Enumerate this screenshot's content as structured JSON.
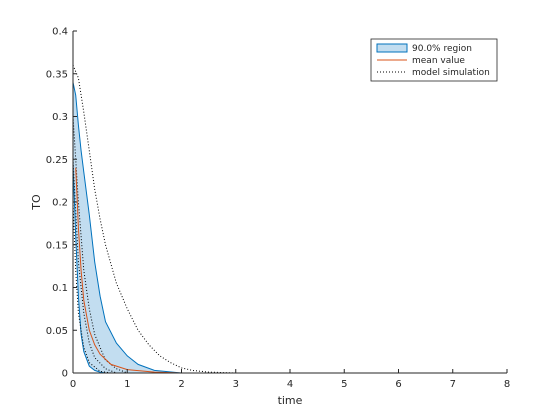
{
  "chart_data": {
    "type": "area",
    "xlabel": "time",
    "ylabel": "TO",
    "xlim": [
      0,
      8
    ],
    "ylim": [
      0,
      0.4
    ],
    "xticks": [
      "0",
      "1",
      "2",
      "3",
      "4",
      "5",
      "6",
      "7",
      "8"
    ],
    "yticks": [
      "0",
      "0.05",
      "0.1",
      "0.15",
      "0.2",
      "0.25",
      "0.3",
      "0.35",
      "0.4"
    ],
    "grid": false,
    "legend_position": "top-right",
    "legend": [
      "90.0% region",
      "mean value",
      "model simulation"
    ],
    "colors": {
      "band_fill": "#c2ddf0",
      "band_edge": "#0072bd",
      "mean": "#d95319",
      "simulation": "#000000",
      "axis": "#262626"
    },
    "band": {
      "x": [
        0,
        0.05,
        0.1,
        0.15,
        0.2,
        0.3,
        0.4,
        0.5,
        0.6,
        0.8,
        1.0,
        1.2,
        1.5,
        2.0
      ],
      "upper": [
        0.34,
        0.325,
        0.29,
        0.26,
        0.235,
        0.185,
        0.13,
        0.09,
        0.06,
        0.035,
        0.02,
        0.01,
        0.003,
        0
      ],
      "lower": [
        0.245,
        0.16,
        0.09,
        0.045,
        0.025,
        0.008,
        0.003,
        0.001,
        0,
        0,
        0,
        0,
        0,
        0
      ]
    },
    "mean_value": {
      "x": [
        0.05,
        0.08,
        0.1,
        0.15,
        0.2,
        0.3,
        0.4,
        0.5,
        0.7,
        1.0,
        1.5,
        2.0,
        8.0
      ],
      "y": [
        0.24,
        0.2,
        0.17,
        0.12,
        0.085,
        0.05,
        0.033,
        0.022,
        0.01,
        0.004,
        0.001,
        0,
        0
      ]
    },
    "model_simulation": [
      {
        "x": [
          0,
          0.1,
          0.2,
          0.3,
          0.4,
          0.5,
          0.6,
          0.8,
          1.0,
          1.2,
          1.4,
          1.6,
          1.8,
          2.0,
          2.2,
          2.5,
          3.0
        ],
        "y": [
          0.36,
          0.345,
          0.305,
          0.26,
          0.215,
          0.18,
          0.15,
          0.105,
          0.075,
          0.05,
          0.033,
          0.02,
          0.012,
          0.006,
          0.003,
          0.001,
          0
        ]
      },
      {
        "x": [
          0,
          0.1,
          0.2,
          0.3,
          0.4,
          0.6,
          0.8,
          1.0
        ],
        "y": [
          0.3,
          0.2,
          0.12,
          0.075,
          0.045,
          0.015,
          0.005,
          0
        ]
      },
      {
        "x": [
          0,
          0.1,
          0.2,
          0.3,
          0.4,
          0.6,
          0.8
        ],
        "y": [
          0.25,
          0.13,
          0.07,
          0.035,
          0.018,
          0.005,
          0
        ]
      },
      {
        "x": [
          0,
          0.05,
          0.1,
          0.2,
          0.3,
          0.5,
          0.7
        ],
        "y": [
          0.2,
          0.12,
          0.07,
          0.03,
          0.012,
          0.002,
          0
        ]
      }
    ]
  }
}
